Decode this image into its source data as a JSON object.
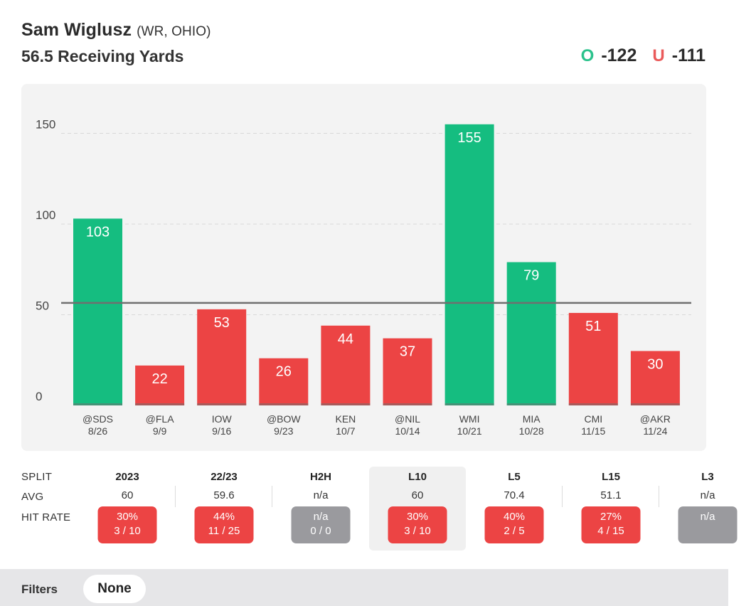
{
  "header": {
    "player_name": "Sam Wiglusz",
    "player_meta": "(WR, OHIO)",
    "prop": "56.5 Receiving Yards",
    "over_label": "O",
    "over_odds": "-122",
    "under_label": "U",
    "under_odds": "-111"
  },
  "colors": {
    "over": "#15bd80",
    "under": "#ec4444",
    "line": "#6f6f6f",
    "push": "#9a9a9e"
  },
  "chart_data": {
    "type": "bar",
    "categories": [
      "@SDS",
      "@FLA",
      "IOW",
      "@BOW",
      "KEN",
      "@NIL",
      "WMI",
      "MIA",
      "CMI",
      "@AKR"
    ],
    "dates": [
      "8/26",
      "9/9",
      "9/16",
      "9/23",
      "10/7",
      "10/14",
      "10/21",
      "10/28",
      "11/15",
      "11/24"
    ],
    "values": [
      103,
      22,
      53,
      26,
      44,
      37,
      155,
      79,
      51,
      30
    ],
    "threshold": 56.5,
    "yticks": [
      0,
      50,
      100,
      150
    ],
    "ylim": [
      0,
      160
    ],
    "grid": true,
    "title": "",
    "xlabel": "",
    "ylabel": ""
  },
  "splits": {
    "row_labels": [
      "SPLIT",
      "AVG",
      "HIT RATE"
    ],
    "columns": [
      {
        "name": "2023",
        "avg": "60",
        "rate": "30%",
        "record": "3 / 10",
        "status": "red"
      },
      {
        "name": "22/23",
        "avg": "59.6",
        "rate": "44%",
        "record": "11 / 25",
        "status": "red"
      },
      {
        "name": "H2H",
        "avg": "n/a",
        "rate": "n/a",
        "record": "0 / 0",
        "status": "grey"
      },
      {
        "name": "L10",
        "avg": "60",
        "rate": "30%",
        "record": "3 / 10",
        "status": "red",
        "selected": true
      },
      {
        "name": "L5",
        "avg": "70.4",
        "rate": "40%",
        "record": "2 / 5",
        "status": "red"
      },
      {
        "name": "L15",
        "avg": "51.1",
        "rate": "27%",
        "record": "4 / 15",
        "status": "red"
      },
      {
        "name": "L3",
        "avg": "n/a",
        "rate": "n/a",
        "record": "",
        "status": "grey"
      }
    ]
  },
  "filters": {
    "label": "Filters",
    "value": "None"
  }
}
